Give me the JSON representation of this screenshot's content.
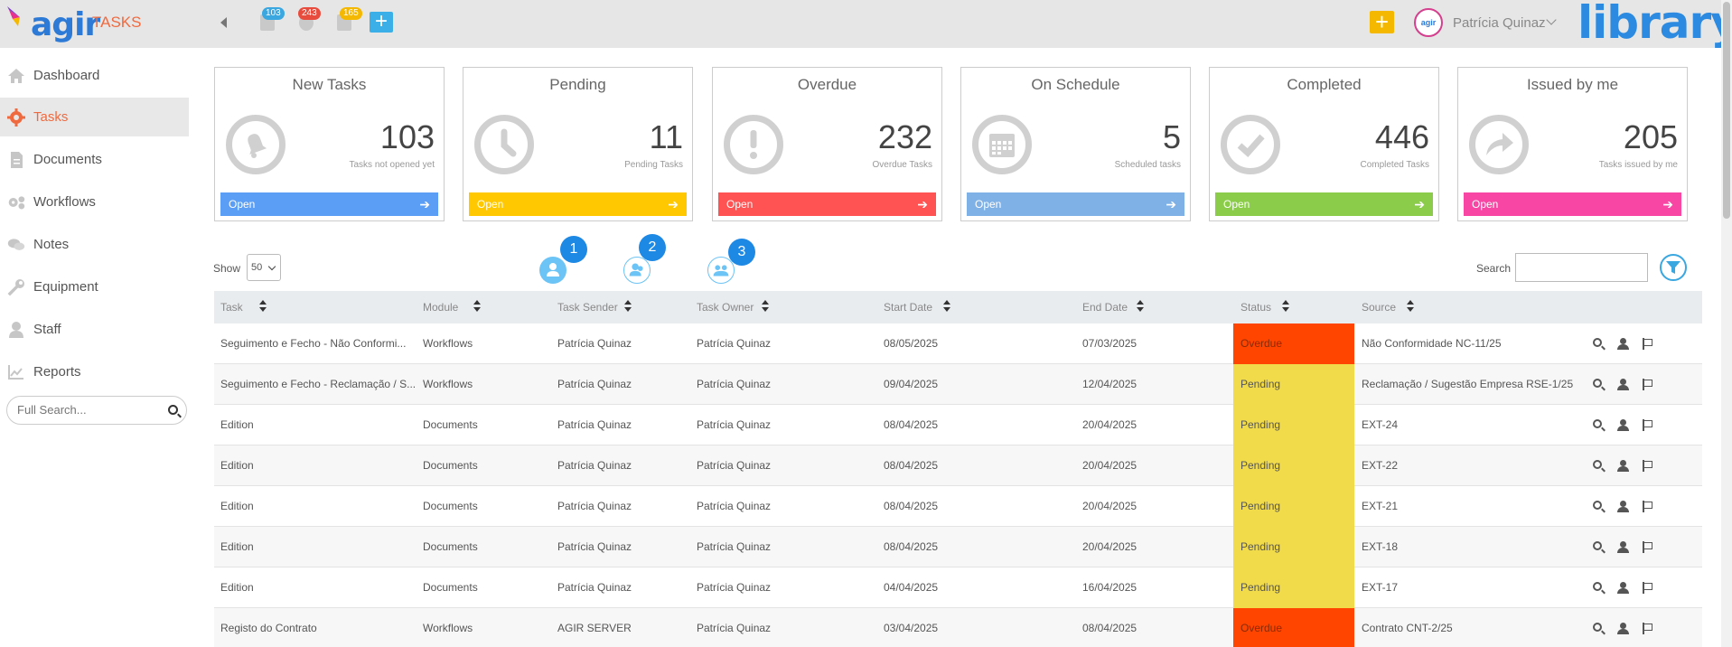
{
  "app": {
    "logo_text": "agir",
    "name": "TASKS",
    "brand": "library"
  },
  "topbar": {
    "badges": [
      {
        "count": "103",
        "color": "#3aa7e0",
        "icon": "tasks-list-icon"
      },
      {
        "count": "243",
        "color": "#e84c3d",
        "icon": "users-icon"
      },
      {
        "count": "165",
        "color": "#f5b800",
        "icon": "document-icon"
      }
    ],
    "add_label": "+",
    "quick_add_label": "+",
    "user_name": "Patrícia Quinaz",
    "avatar_text": "agir"
  },
  "sidebar": {
    "items": [
      {
        "label": "Dashboard",
        "icon": "home-icon"
      },
      {
        "label": "Tasks",
        "icon": "gear-icon",
        "active": true
      },
      {
        "label": "Documents",
        "icon": "document-icon"
      },
      {
        "label": "Workflows",
        "icon": "workflow-icon"
      },
      {
        "label": "Notes",
        "icon": "notes-icon"
      },
      {
        "label": "Equipment",
        "icon": "wrench-icon"
      },
      {
        "label": "Staff",
        "icon": "person-icon"
      },
      {
        "label": "Reports",
        "icon": "chart-icon"
      }
    ],
    "search_placeholder": "Full Search..."
  },
  "cards": [
    {
      "title": "New Tasks",
      "value": "103",
      "sub": "Tasks not opened yet",
      "btn": "Open",
      "color": "#5b9ef5",
      "icon": "bell-icon"
    },
    {
      "title": "Pending",
      "value": "11",
      "sub": "Pending Tasks",
      "btn": "Open",
      "color": "#ffc800",
      "icon": "clock-icon"
    },
    {
      "title": "Overdue",
      "value": "232",
      "sub": "Overdue Tasks",
      "btn": "Open",
      "color": "#ff5252",
      "icon": "exclamation-icon"
    },
    {
      "title": "On Schedule",
      "value": "5",
      "sub": "Scheduled tasks",
      "btn": "Open",
      "color": "#7fb0e6",
      "icon": "calendar-icon"
    },
    {
      "title": "Completed",
      "value": "446",
      "sub": "Completed Tasks",
      "btn": "Open",
      "color": "#8bcc4a",
      "icon": "check-icon"
    },
    {
      "title": "Issued by me",
      "value": "205",
      "sub": "Tasks issued by me",
      "btn": "Open",
      "color": "#f746a4",
      "icon": "share-icon"
    }
  ],
  "controls": {
    "show_label": "Show",
    "show_value": "50",
    "search_label": "Search",
    "view_badges": [
      "1",
      "2",
      "3"
    ]
  },
  "table": {
    "headers": [
      "Task",
      "Module",
      "Task Sender",
      "Task Owner",
      "Start Date",
      "End Date",
      "Status",
      "Source"
    ],
    "rows": [
      {
        "task": "Seguimento e Fecho - Não Conformi...",
        "module": "Workflows",
        "sender": "Patrícia Quinaz",
        "owner": "Patrícia Quinaz",
        "start": "08/05/2025",
        "end": "07/03/2025",
        "status": "Overdue",
        "source": "Não Conformidade NC-11/25"
      },
      {
        "task": "Seguimento e Fecho - Reclamação / S...",
        "module": "Workflows",
        "sender": "Patrícia Quinaz",
        "owner": "Patrícia Quinaz",
        "start": "09/04/2025",
        "end": "12/04/2025",
        "status": "Pending",
        "source": "Reclamação / Sugestão Empresa RSE-1/25"
      },
      {
        "task": "Edition",
        "module": "Documents",
        "sender": "Patrícia Quinaz",
        "owner": "Patrícia Quinaz",
        "start": "08/04/2025",
        "end": "20/04/2025",
        "status": "Pending",
        "source": "EXT-24"
      },
      {
        "task": "Edition",
        "module": "Documents",
        "sender": "Patrícia Quinaz",
        "owner": "Patrícia Quinaz",
        "start": "08/04/2025",
        "end": "20/04/2025",
        "status": "Pending",
        "source": "EXT-22"
      },
      {
        "task": "Edition",
        "module": "Documents",
        "sender": "Patrícia Quinaz",
        "owner": "Patrícia Quinaz",
        "start": "08/04/2025",
        "end": "20/04/2025",
        "status": "Pending",
        "source": "EXT-21"
      },
      {
        "task": "Edition",
        "module": "Documents",
        "sender": "Patrícia Quinaz",
        "owner": "Patrícia Quinaz",
        "start": "08/04/2025",
        "end": "20/04/2025",
        "status": "Pending",
        "source": "EXT-18"
      },
      {
        "task": "Edition",
        "module": "Documents",
        "sender": "Patrícia Quinaz",
        "owner": "Patrícia Quinaz",
        "start": "04/04/2025",
        "end": "16/04/2025",
        "status": "Pending",
        "source": "EXT-17"
      },
      {
        "task": "Registo do Contrato",
        "module": "Workflows",
        "sender": "AGIR SERVER",
        "owner": "Patrícia Quinaz",
        "start": "03/04/2025",
        "end": "08/04/2025",
        "status": "Overdue",
        "source": "Contrato CNT-2/25"
      }
    ]
  }
}
